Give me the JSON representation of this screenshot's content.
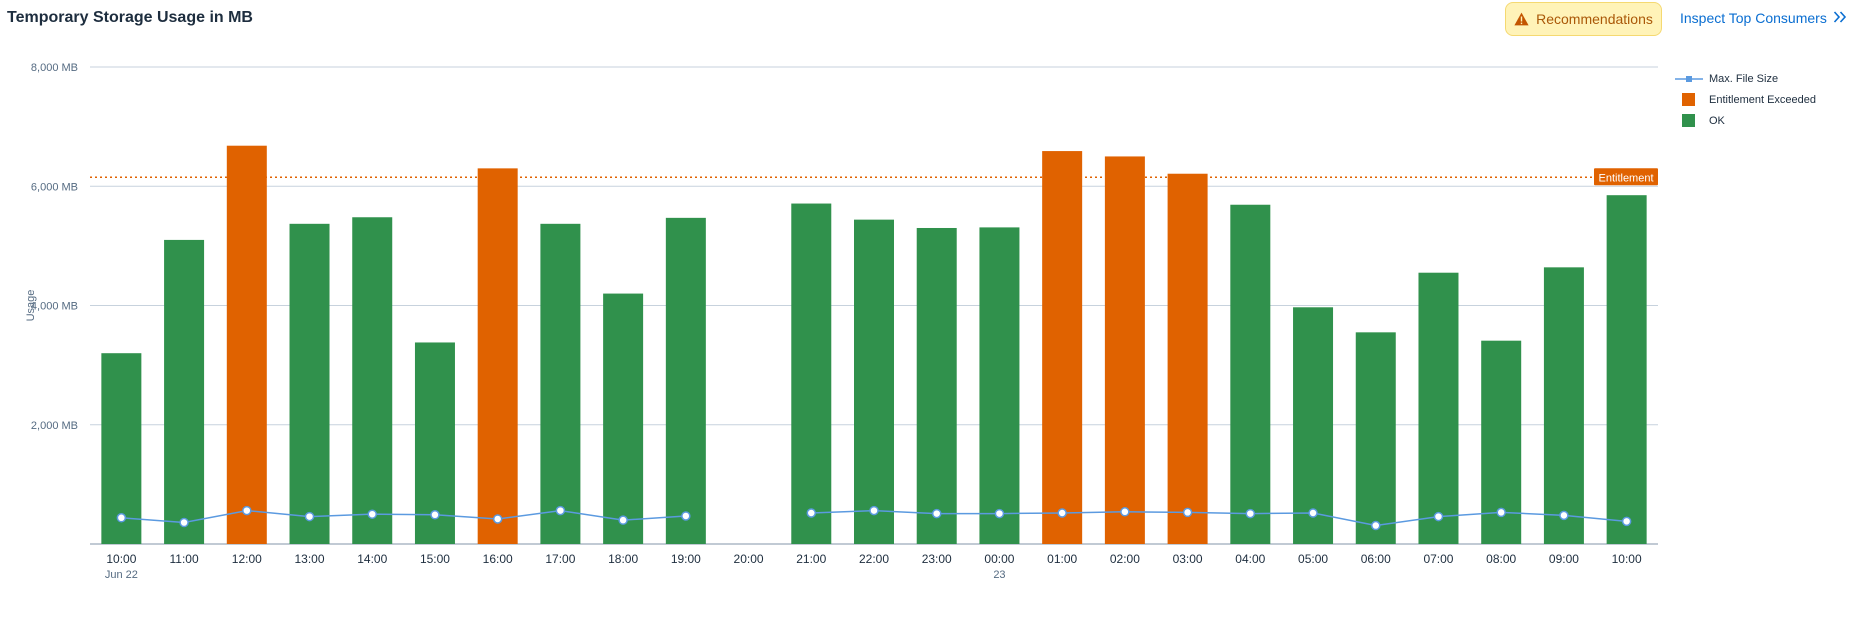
{
  "header": {
    "title": "Temporary Storage Usage in MB",
    "recommendations_label": "Recommendations",
    "inspect_label": "Inspect Top Consumers"
  },
  "icons": {
    "recommendations": "warning-icon",
    "inspect": "double-chevron-right-icon"
  },
  "chart_data": {
    "type": "bar",
    "ylabel": "Usage",
    "ylim": [
      0,
      8000
    ],
    "yticks": [
      0,
      2000,
      4000,
      6000,
      8000
    ],
    "ytick_labels": [
      "",
      "2,000 MB",
      "4,000 MB",
      "6,000 MB",
      "8,000 MB"
    ],
    "grid": true,
    "legend_position": "top-right",
    "categories": [
      "10:00",
      "11:00",
      "12:00",
      "13:00",
      "14:00",
      "15:00",
      "16:00",
      "17:00",
      "18:00",
      "19:00",
      "20:00",
      "21:00",
      "22:00",
      "23:00",
      "00:00",
      "01:00",
      "02:00",
      "03:00",
      "04:00",
      "05:00",
      "06:00",
      "07:00",
      "08:00",
      "09:00",
      "10:00"
    ],
    "category_sublabels": [
      "Jun 22",
      "",
      "",
      "",
      "",
      "",
      "",
      "",
      "",
      "",
      "",
      "",
      "",
      "",
      "23",
      "",
      "",
      "",
      "",
      "",
      "",
      "",
      "",
      "",
      ""
    ],
    "usage_values": [
      3200,
      5100,
      6680,
      5370,
      5480,
      3380,
      6300,
      5370,
      4200,
      5470,
      null,
      5710,
      5440,
      5300,
      5310,
      6590,
      6500,
      6210,
      5690,
      3970,
      3550,
      4550,
      3410,
      4640,
      5850
    ],
    "status": [
      "OK",
      "OK",
      "Entitlement Exceeded",
      "OK",
      "OK",
      "OK",
      "Entitlement Exceeded",
      "OK",
      "OK",
      "OK",
      null,
      "OK",
      "OK",
      "OK",
      "OK",
      "Entitlement Exceeded",
      "Entitlement Exceeded",
      "Entitlement Exceeded",
      "OK",
      "OK",
      "OK",
      "OK",
      "OK",
      "OK",
      "OK"
    ],
    "series": [
      {
        "name": "Max. File Size",
        "type": "line",
        "color": "#5b9ae0",
        "values": [
          440,
          360,
          560,
          460,
          500,
          490,
          420,
          560,
          400,
          470,
          null,
          520,
          560,
          510,
          510,
          520,
          540,
          530,
          510,
          520,
          310,
          460,
          530,
          480,
          380
        ]
      },
      {
        "name": "Entitlement Exceeded",
        "type": "bar",
        "color": "#e06200"
      },
      {
        "name": "OK",
        "type": "bar",
        "color": "#30914c"
      }
    ],
    "reference_line": {
      "label": "Entitlement",
      "value": 6150,
      "color": "#e06200"
    }
  }
}
